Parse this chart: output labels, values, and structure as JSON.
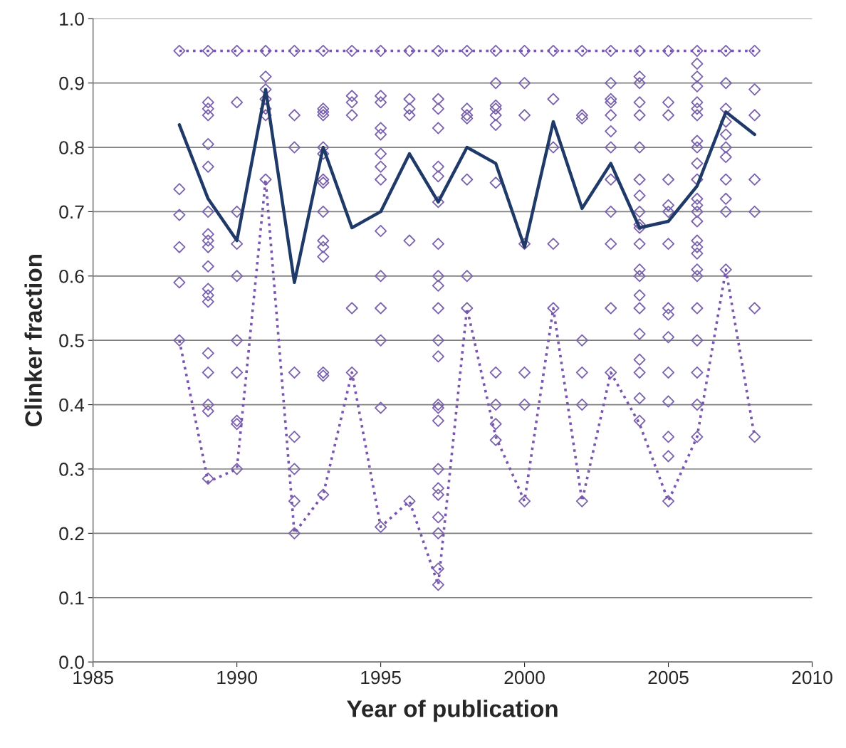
{
  "chart_data": {
    "type": "scatter",
    "xlabel": "Year of publication",
    "ylabel": "Clinker fraction",
    "xlim": [
      1985,
      2010
    ],
    "xticks": [
      1985,
      1990,
      1995,
      2000,
      2005,
      2010
    ],
    "ylim": [
      0,
      1
    ],
    "yticks": [
      {
        "value": 0,
        "label": "0.0"
      },
      0.1,
      0.2,
      0.3,
      0.4,
      0.5,
      0.6,
      0.7,
      0.8,
      0.9,
      {
        "value": 1,
        "label": "1.0"
      }
    ],
    "grid": "y",
    "legend": false,
    "series": [
      {
        "marker": "diamond",
        "color": "#7a62ad",
        "x": [
          1988,
          1988,
          1988,
          1988,
          1988,
          1988,
          1989,
          1989,
          1989,
          1989,
          1989,
          1989,
          1989,
          1989,
          1989,
          1989,
          1989,
          1989,
          1989,
          1989,
          1989,
          1989,
          1989,
          1989,
          1989,
          1990,
          1990,
          1990,
          1990,
          1990,
          1990,
          1990,
          1990,
          1990,
          1990,
          1991,
          1991,
          1991,
          1991,
          1991,
          1991,
          1991,
          1992,
          1992,
          1992,
          1992,
          1992,
          1992,
          1992,
          1992,
          1993,
          1993,
          1993,
          1993,
          1993,
          1993,
          1993,
          1993,
          1993,
          1993,
          1993,
          1993,
          1993,
          1993,
          1993,
          1994,
          1994,
          1994,
          1994,
          1994,
          1994,
          1995,
          1995,
          1995,
          1995,
          1995,
          1995,
          1995,
          1995,
          1995,
          1995,
          1995,
          1995,
          1995,
          1995,
          1996,
          1996,
          1996,
          1996,
          1996,
          1996,
          1997,
          1997,
          1997,
          1997,
          1997,
          1997,
          1997,
          1997,
          1997,
          1997,
          1997,
          1997,
          1997,
          1997,
          1997,
          1997,
          1997,
          1997,
          1997,
          1997,
          1997,
          1997,
          1997,
          1998,
          1998,
          1998,
          1998,
          1998,
          1998,
          1998,
          1999,
          1999,
          1999,
          1999,
          1999,
          1999,
          1999,
          1999,
          1999,
          1999,
          1999,
          2000,
          2000,
          2000,
          2000,
          2000,
          2000,
          2000,
          2001,
          2001,
          2001,
          2001,
          2001,
          2002,
          2002,
          2002,
          2002,
          2002,
          2002,
          2002,
          2003,
          2003,
          2003,
          2003,
          2003,
          2003,
          2003,
          2003,
          2003,
          2003,
          2003,
          2003,
          2004,
          2004,
          2004,
          2004,
          2004,
          2004,
          2004,
          2004,
          2004,
          2004,
          2004,
          2004,
          2004,
          2004,
          2004,
          2004,
          2004,
          2004,
          2004,
          2004,
          2004,
          2005,
          2005,
          2005,
          2005,
          2005,
          2005,
          2005,
          2005,
          2005,
          2005,
          2005,
          2005,
          2005,
          2005,
          2005,
          2006,
          2006,
          2006,
          2006,
          2006,
          2006,
          2006,
          2006,
          2006,
          2006,
          2006,
          2006,
          2006,
          2006,
          2006,
          2006,
          2006,
          2006,
          2006,
          2006,
          2006,
          2006,
          2006,
          2006,
          2006,
          2007,
          2007,
          2007,
          2007,
          2007,
          2007,
          2007,
          2007,
          2007,
          2007,
          2007,
          2008,
          2008,
          2008,
          2008,
          2008,
          2008,
          2008
        ],
        "values": [
          0.95,
          0.735,
          0.695,
          0.645,
          0.59,
          0.5,
          0.95,
          0.87,
          0.86,
          0.85,
          0.805,
          0.77,
          0.7,
          0.665,
          0.655,
          0.645,
          0.615,
          0.58,
          0.57,
          0.56,
          0.48,
          0.45,
          0.4,
          0.39,
          0.285,
          0.95,
          0.87,
          0.7,
          0.65,
          0.6,
          0.5,
          0.45,
          0.375,
          0.37,
          0.3,
          0.95,
          0.91,
          0.89,
          0.875,
          0.86,
          0.85,
          0.75,
          0.95,
          0.85,
          0.8,
          0.45,
          0.35,
          0.3,
          0.25,
          0.2,
          0.95,
          0.86,
          0.855,
          0.85,
          0.8,
          0.79,
          0.75,
          0.745,
          0.7,
          0.655,
          0.645,
          0.63,
          0.45,
          0.445,
          0.26,
          0.95,
          0.88,
          0.87,
          0.85,
          0.55,
          0.45,
          0.95,
          0.88,
          0.87,
          0.83,
          0.82,
          0.79,
          0.77,
          0.75,
          0.67,
          0.6,
          0.55,
          0.5,
          0.395,
          0.21,
          0.95,
          0.875,
          0.86,
          0.85,
          0.655,
          0.25,
          0.95,
          0.875,
          0.86,
          0.83,
          0.77,
          0.755,
          0.715,
          0.65,
          0.6,
          0.585,
          0.55,
          0.5,
          0.475,
          0.4,
          0.395,
          0.375,
          0.3,
          0.27,
          0.26,
          0.225,
          0.2,
          0.145,
          0.12,
          0.95,
          0.86,
          0.85,
          0.845,
          0.75,
          0.6,
          0.55,
          0.95,
          0.9,
          0.865,
          0.86,
          0.85,
          0.835,
          0.745,
          0.45,
          0.4,
          0.37,
          0.345,
          0.95,
          0.9,
          0.85,
          0.65,
          0.45,
          0.4,
          0.25,
          0.95,
          0.875,
          0.8,
          0.65,
          0.55,
          0.95,
          0.85,
          0.845,
          0.5,
          0.45,
          0.4,
          0.25,
          0.95,
          0.9,
          0.875,
          0.87,
          0.85,
          0.825,
          0.8,
          0.75,
          0.7,
          0.65,
          0.55,
          0.45,
          0.95,
          0.91,
          0.9,
          0.87,
          0.85,
          0.8,
          0.75,
          0.725,
          0.7,
          0.68,
          0.675,
          0.65,
          0.61,
          0.6,
          0.57,
          0.55,
          0.51,
          0.47,
          0.45,
          0.41,
          0.375,
          0.95,
          0.87,
          0.85,
          0.75,
          0.71,
          0.7,
          0.65,
          0.55,
          0.54,
          0.505,
          0.45,
          0.405,
          0.35,
          0.32,
          0.25,
          0.95,
          0.93,
          0.91,
          0.895,
          0.87,
          0.86,
          0.85,
          0.81,
          0.8,
          0.775,
          0.75,
          0.72,
          0.71,
          0.7,
          0.685,
          0.655,
          0.645,
          0.635,
          0.61,
          0.6,
          0.55,
          0.5,
          0.45,
          0.4,
          0.35,
          0.95,
          0.9,
          0.86,
          0.84,
          0.82,
          0.8,
          0.785,
          0.75,
          0.72,
          0.7,
          0.61,
          0.95,
          0.89,
          0.85,
          0.75,
          0.7,
          0.55,
          0.35
        ]
      },
      {
        "type": "line",
        "line_style": "dotted",
        "color": "#7a55b0",
        "x": [
          1988,
          1989,
          1990,
          1991,
          1992,
          1993,
          1994,
          1995,
          1996,
          1997,
          1998,
          1999,
          2000,
          2001,
          2002,
          2003,
          2004,
          2005,
          2006,
          2007,
          2008
        ],
        "values": [
          0.95,
          0.95,
          0.95,
          0.95,
          0.95,
          0.95,
          0.95,
          0.95,
          0.95,
          0.95,
          0.95,
          0.95,
          0.95,
          0.95,
          0.95,
          0.95,
          0.95,
          0.95,
          0.95,
          0.95,
          0.95
        ]
      },
      {
        "type": "line",
        "line_style": "dotted",
        "color": "#7a55b0",
        "x": [
          1988,
          1989,
          1990,
          1991,
          1992,
          1993,
          1994,
          1995,
          1996,
          1997,
          1998,
          1999,
          2000,
          2001,
          2002,
          2003,
          2004,
          2005,
          2006,
          2007,
          2008
        ],
        "values": [
          0.5,
          0.28,
          0.3,
          0.75,
          0.2,
          0.26,
          0.45,
          0.21,
          0.25,
          0.12,
          0.55,
          0.35,
          0.25,
          0.55,
          0.25,
          0.45,
          0.37,
          0.25,
          0.35,
          0.61,
          0.35
        ]
      },
      {
        "type": "line",
        "line_style": "solid",
        "color": "#1f3a68",
        "x": [
          1988,
          1989,
          1990,
          1991,
          1992,
          1993,
          1994,
          1995,
          1996,
          1997,
          1998,
          1999,
          2000,
          2001,
          2002,
          2003,
          2004,
          2005,
          2006,
          2007,
          2008
        ],
        "values": [
          0.835,
          0.72,
          0.655,
          0.89,
          0.59,
          0.8,
          0.675,
          0.7,
          0.79,
          0.715,
          0.8,
          0.775,
          0.645,
          0.84,
          0.705,
          0.775,
          0.675,
          0.685,
          0.74,
          0.855,
          0.82
        ]
      }
    ]
  }
}
